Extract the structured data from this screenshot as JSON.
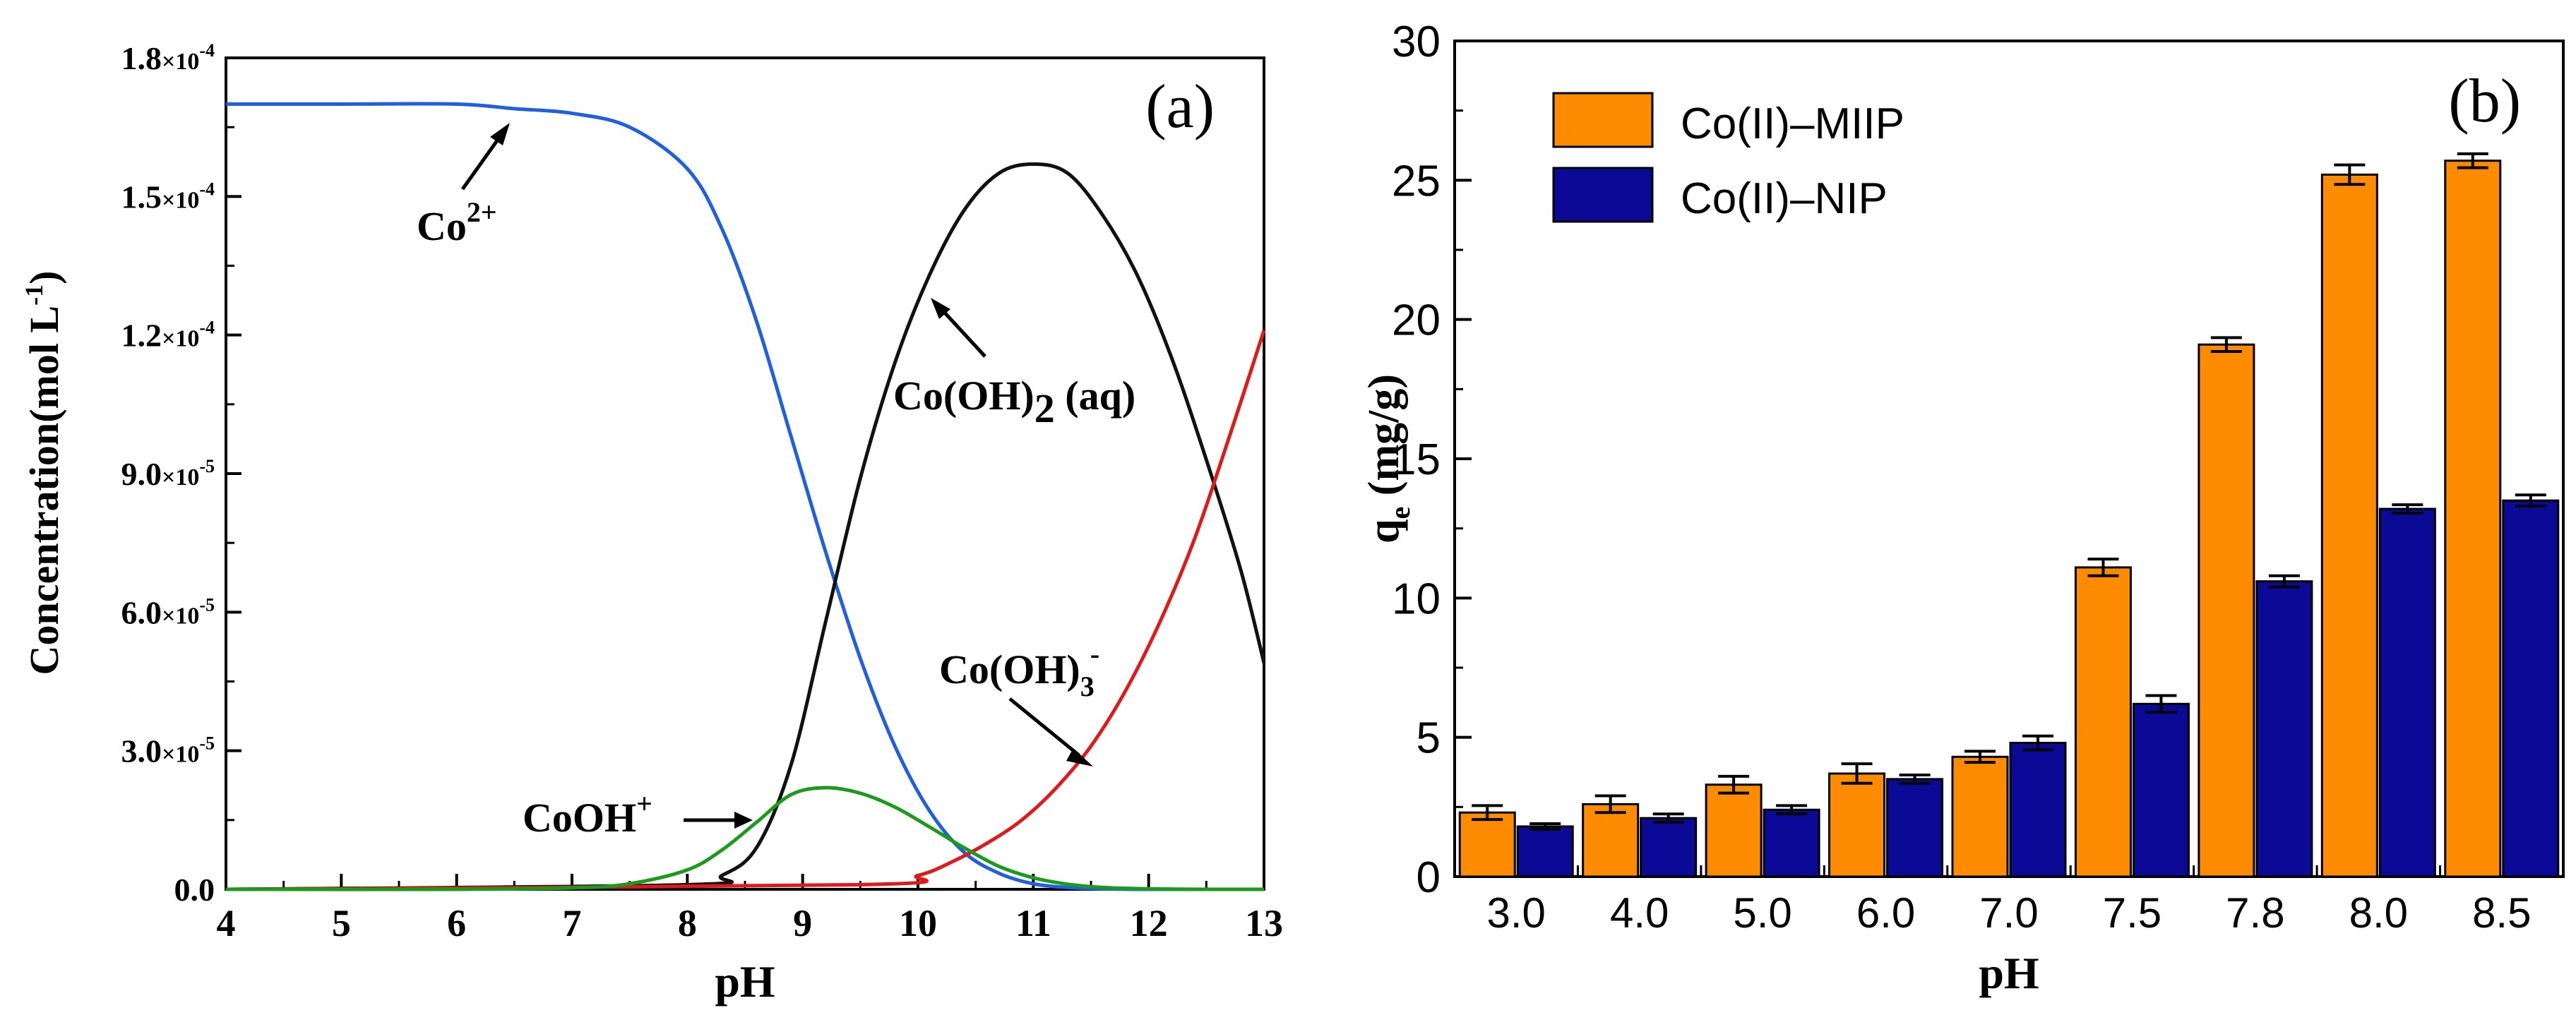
{
  "chart_data": [
    {
      "type": "line",
      "panel_label": "(a)",
      "xlabel": "pH",
      "ylabel": "Concentration(mol L",
      "ylabel_sup": "-1",
      "ylabel_close": ")",
      "xlim": [
        4,
        13
      ],
      "ylim": [
        0,
        0.00018
      ],
      "x_ticks": [
        "4",
        "5",
        "6",
        "7",
        "8",
        "9",
        "10",
        "11",
        "12",
        "13"
      ],
      "y_ticks": [
        {
          "value": 0,
          "mant": "0.0",
          "exp": ""
        },
        {
          "value": 3e-05,
          "mant": "3.0",
          "exp": "-5"
        },
        {
          "value": 6e-05,
          "mant": "6.0",
          "exp": "-5"
        },
        {
          "value": 9e-05,
          "mant": "9.0",
          "exp": "-5"
        },
        {
          "value": 0.00012,
          "mant": "1.2",
          "exp": "-4"
        },
        {
          "value": 0.00015,
          "mant": "1.5",
          "exp": "-4"
        },
        {
          "value": 0.00018,
          "mant": "1.8",
          "exp": "-4"
        }
      ],
      "times_sign": "×10",
      "series": [
        {
          "name": "Co2+",
          "color": "#1f5fe0",
          "x": [
            4,
            5,
            6,
            6.5,
            7,
            7.5,
            8,
            8.3,
            8.6,
            8.9,
            9.2,
            9.5,
            9.8,
            10.1,
            10.4,
            10.7,
            11,
            11.3,
            11.6,
            12,
            13
          ],
          "y": [
            0.00017,
            0.00017,
            0.00017,
            0.000169,
            0.000168,
            0.000165,
            0.000156,
            0.000143,
            0.000123,
            9.8e-05,
            7.3e-05,
            5e-05,
            3.1e-05,
            1.7e-05,
            8e-06,
            3.5e-06,
            1.2e-06,
            4e-07,
            1e-07,
            0,
            0
          ]
        },
        {
          "name": "Co(OH)2 (aq)",
          "color": "#111111",
          "x": [
            4,
            8,
            8.3,
            8.6,
            8.9,
            9.2,
            9.5,
            9.8,
            10.1,
            10.4,
            10.7,
            11,
            11.3,
            11.6,
            11.9,
            12.2,
            12.5,
            12.8,
            13
          ],
          "y": [
            0,
            1e-06,
            3e-06,
            9e-06,
            2.7e-05,
            5.8e-05,
            8.9e-05,
            0.000114,
            0.000133,
            0.000147,
            0.000155,
            0.000157,
            0.000155,
            0.000146,
            0.000133,
            0.000115,
            9.3e-05,
            6.9e-05,
            4.9e-05
          ]
        },
        {
          "name": "Co(OH)3-",
          "color": "#e01a1a",
          "x": [
            4,
            9.5,
            10,
            10.3,
            10.6,
            10.9,
            11.2,
            11.5,
            11.8,
            12.1,
            12.4,
            12.7,
            13
          ],
          "y": [
            0,
            1e-06,
            3e-06,
            6e-06,
            1e-05,
            1.5e-05,
            2.2e-05,
            3.1e-05,
            4.3e-05,
            5.8e-05,
            7.6e-05,
            9.8e-05,
            0.000121
          ]
        },
        {
          "name": "CoOH+",
          "color": "#1c9a1c",
          "x": [
            4,
            6,
            7,
            7.5,
            8,
            8.3,
            8.6,
            8.9,
            9.2,
            9.5,
            9.8,
            10.1,
            10.4,
            10.7,
            11,
            11.3,
            11.6,
            12,
            12.5,
            13
          ],
          "y": [
            0,
            0,
            3e-07,
            1.2e-06,
            4.2e-06,
            8.5e-06,
            1.45e-05,
            2.05e-05,
            2.2e-05,
            2.08e-05,
            1.78e-05,
            1.35e-05,
            9e-06,
            5e-06,
            2.5e-06,
            1.1e-06,
            4e-07,
            1e-07,
            0,
            0
          ]
        }
      ],
      "annotations": [
        {
          "text": "Co",
          "sup": "2+",
          "sub": "",
          "tail": ""
        },
        {
          "text": "Co(OH)",
          "sup": "",
          "sub": "2",
          "tail": " (aq)"
        },
        {
          "text": "Co(OH)",
          "sup": "-",
          "sub": "3",
          "tail": ""
        },
        {
          "text": "CoOH",
          "sup": "+",
          "sub": "",
          "tail": ""
        }
      ]
    },
    {
      "type": "bar",
      "panel_label": "(b)",
      "xlabel": "pH",
      "ylabel": "q",
      "ylabel_sub": "e",
      "ylabel_unit": " (mg/g)",
      "ylim": [
        0,
        30
      ],
      "y_ticks": [
        "0",
        "5",
        "10",
        "15",
        "20",
        "25",
        "30"
      ],
      "categories": [
        "3.0",
        "4.0",
        "5.0",
        "6.0",
        "7.0",
        "7.5",
        "7.8",
        "8.0",
        "8.5"
      ],
      "series": [
        {
          "name": "Co(II)–MIIP",
          "color": "#ff8c00",
          "values": [
            2.3,
            2.6,
            3.3,
            3.7,
            4.3,
            11.1,
            19.1,
            25.2,
            25.7
          ],
          "errors": [
            0.25,
            0.3,
            0.3,
            0.35,
            0.2,
            0.3,
            0.25,
            0.35,
            0.25
          ]
        },
        {
          "name": "Co(II)–NIP",
          "color": "#0a0a96",
          "values": [
            1.8,
            2.1,
            2.4,
            3.5,
            4.8,
            6.2,
            10.6,
            13.2,
            13.5
          ],
          "errors": [
            0.1,
            0.15,
            0.15,
            0.15,
            0.25,
            0.3,
            0.2,
            0.15,
            0.2
          ]
        }
      ]
    }
  ]
}
